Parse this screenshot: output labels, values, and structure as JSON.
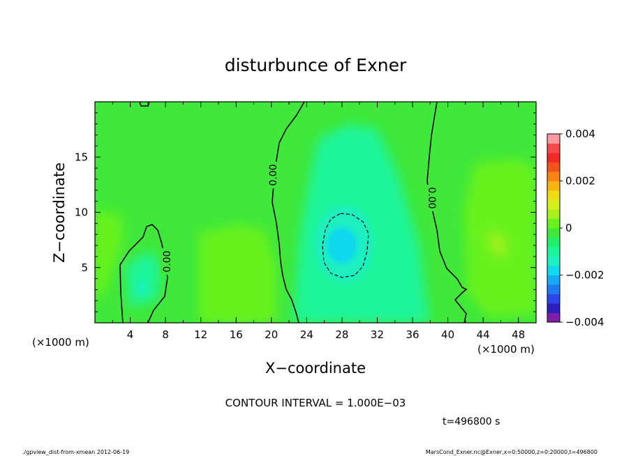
{
  "chart_data": {
    "type": "contour",
    "title": "disturbunce of Exner",
    "xlabel": "X−coordinate",
    "ylabel": "Z−coordinate",
    "x_unit": "(×1000 m)",
    "y_unit": "(×1000 m)",
    "xlim": [
      0,
      50
    ],
    "ylim": [
      0,
      20
    ],
    "x_ticks": [
      "4",
      "8",
      "12",
      "16",
      "20",
      "24",
      "28",
      "32",
      "36",
      "40",
      "44",
      "48"
    ],
    "y_ticks": [
      "5",
      "10",
      "15"
    ],
    "colorbar": {
      "min": -0.004,
      "max": 0.004,
      "tick_labels": [
        "−0.004",
        "−0.002",
        "0",
        "0.002",
        "0.004"
      ],
      "colors": [
        "#7f1ea8",
        "#2a1fbd",
        "#2d45e6",
        "#1f7af0",
        "#16a9f5",
        "#10d8ee",
        "#1ef0c0",
        "#1ef59a",
        "#22f06a",
        "#3fe83a",
        "#67f21e",
        "#a5f01e",
        "#d5ee1c",
        "#f0dc14",
        "#f7b40f",
        "#f78414",
        "#f2541e",
        "#f02a25",
        "#f54a4a",
        "#fa9aa0"
      ]
    },
    "contour_labels": [
      "0.00",
      "0.00",
      "0.00"
    ],
    "contour_interval_text": "CONTOUR INTERVAL = 1.000E−03",
    "time_text": "t=496800  s",
    "features": [
      {
        "kind": "minimum",
        "x": 28,
        "z": 7,
        "value": -0.0017
      },
      {
        "kind": "zero_contour",
        "x_at_z10": 21.5
      },
      {
        "kind": "zero_contour",
        "x_at_z10": 39.3
      },
      {
        "kind": "zero_contour_closed",
        "x_center": 5.5,
        "z_center": 4
      }
    ]
  },
  "footer": {
    "left": "./gpview_dist-from-xmean  2012-06-19",
    "right": "MarsCond_Exner.nc@Exner,x=0:50000,z=0:20000,t=496800"
  }
}
